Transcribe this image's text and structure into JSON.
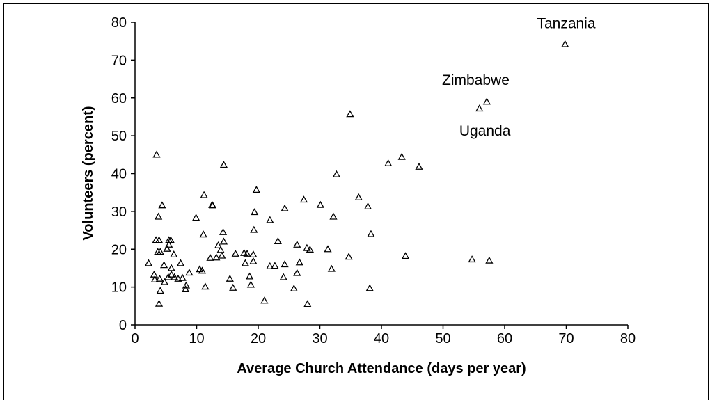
{
  "chart_data": {
    "type": "scatter",
    "xlabel": "Average Church Attendance (days per year)",
    "ylabel": "Volunteers (percent)",
    "xlim": [
      0,
      80
    ],
    "ylim": [
      0,
      80
    ],
    "xticks": [
      0,
      10,
      20,
      30,
      40,
      50,
      60,
      70,
      80
    ],
    "yticks": [
      0,
      10,
      20,
      30,
      40,
      50,
      60,
      70,
      80
    ],
    "grid": false,
    "legend": "none",
    "marker": "triangle",
    "annotations": [
      {
        "text": "Tanzania",
        "x": 70,
        "y": 74
      },
      {
        "text": "Zimbabwe",
        "x": 57,
        "y": 59
      },
      {
        "text": "Uganda",
        "x": 56,
        "y": 57
      }
    ],
    "points": [
      [
        3.5,
        45
      ],
      [
        14.4,
        42.3
      ],
      [
        2.2,
        16.3
      ],
      [
        3.1,
        13.3
      ],
      [
        3.4,
        22.4
      ],
      [
        3.2,
        12.0
      ],
      [
        3.8,
        28.6
      ],
      [
        3.7,
        19.3
      ],
      [
        3.9,
        22.4
      ],
      [
        4.1,
        19.3
      ],
      [
        4.4,
        31.6
      ],
      [
        4.0,
        12.2
      ],
      [
        4.1,
        9.0
      ],
      [
        3.9,
        5.6
      ],
      [
        4.7,
        15.8
      ],
      [
        4.8,
        11.3
      ],
      [
        5.2,
        20.1
      ],
      [
        5.4,
        12.6
      ],
      [
        5.5,
        21.2
      ],
      [
        5.5,
        22.4
      ],
      [
        5.8,
        22.4
      ],
      [
        5.9,
        13.3
      ],
      [
        5.9,
        15.0
      ],
      [
        6.3,
        18.6
      ],
      [
        6.4,
        12.6
      ],
      [
        7.0,
        12.2
      ],
      [
        7.4,
        16.3
      ],
      [
        7.7,
        12.4
      ],
      [
        8.2,
        9.4
      ],
      [
        8.3,
        10.4
      ],
      [
        8.8,
        13.8
      ],
      [
        9.9,
        28.3
      ],
      [
        10.5,
        14.7
      ],
      [
        11.2,
        34.3
      ],
      [
        11.1,
        23.9
      ],
      [
        10.9,
        14.3
      ],
      [
        11.4,
        10.1
      ],
      [
        12.5,
        31.7
      ],
      [
        12.6,
        31.6
      ],
      [
        12.2,
        17.7
      ],
      [
        13.2,
        17.8
      ],
      [
        13.5,
        21.0
      ],
      [
        13.9,
        19.8
      ],
      [
        14.1,
        18.3
      ],
      [
        14.3,
        24.5
      ],
      [
        14.4,
        22.0
      ],
      [
        15.4,
        12.2
      ],
      [
        15.9,
        9.8
      ],
      [
        16.3,
        18.8
      ],
      [
        17.7,
        19.0
      ],
      [
        17.9,
        16.3
      ],
      [
        18.2,
        18.8
      ],
      [
        18.6,
        12.8
      ],
      [
        18.8,
        10.6
      ],
      [
        19.2,
        18.6
      ],
      [
        19.2,
        16.8
      ],
      [
        19.3,
        25.1
      ],
      [
        19.4,
        29.8
      ],
      [
        19.7,
        35.7
      ],
      [
        21.0,
        6.4
      ],
      [
        21.9,
        27.7
      ],
      [
        21.9,
        15.5
      ],
      [
        22.7,
        15.6
      ],
      [
        23.2,
        22.1
      ],
      [
        24.1,
        12.6
      ],
      [
        24.3,
        16.0
      ],
      [
        24.3,
        30.8
      ],
      [
        25.8,
        9.6
      ],
      [
        26.3,
        13.7
      ],
      [
        26.7,
        16.5
      ],
      [
        26.3,
        21.2
      ],
      [
        27.4,
        33.1
      ],
      [
        27.9,
        20.3
      ],
      [
        28.0,
        5.5
      ],
      [
        28.4,
        19.9
      ],
      [
        30.1,
        31.7
      ],
      [
        31.3,
        20.0
      ],
      [
        31.9,
        14.8
      ],
      [
        32.2,
        28.6
      ],
      [
        32.7,
        39.8
      ],
      [
        34.7,
        18.0
      ],
      [
        34.9,
        55.7
      ],
      [
        36.3,
        33.7
      ],
      [
        37.8,
        31.3
      ],
      [
        38.1,
        9.7
      ],
      [
        38.3,
        24.0
      ],
      [
        41.1,
        42.7
      ],
      [
        43.3,
        44.4
      ],
      [
        43.9,
        18.2
      ],
      [
        46.1,
        41.8
      ],
      [
        54.7,
        17.3
      ],
      [
        57.5,
        17.0
      ],
      [
        55.9,
        57.2
      ],
      [
        57.1,
        59.0
      ],
      [
        69.8,
        74.2
      ]
    ]
  }
}
